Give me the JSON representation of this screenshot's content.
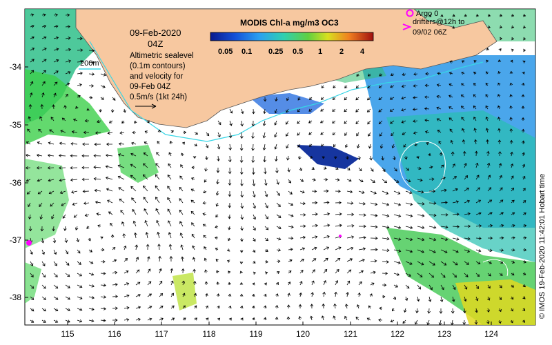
{
  "map": {
    "date": "09-Feb-2020",
    "time": "04Z",
    "depth_contour": "200m",
    "description_lines": [
      "Altimetric sealevel",
      "(0.1m contours)",
      "and velocity for",
      "09-Feb 04Z",
      "0.5m/s (1kt 24h)"
    ],
    "credit": "© IMOS 19-Feb-2020 11:42:01 Hobart time",
    "colors": {
      "land": "#f7c8a0",
      "ocean": "#ffffff",
      "contour": "#36d6e6",
      "argo": "#ff00ff"
    },
    "longitude_ticks": [
      "115",
      "116",
      "117",
      "118",
      "119",
      "120",
      "121",
      "122",
      "123",
      "124"
    ],
    "latitude_ticks": [
      "-34",
      "-35",
      "-36",
      "-37",
      "-38"
    ]
  },
  "colorbar": {
    "title": "MODIS Chl-a mg/m3 OC3",
    "tick_labels": [
      "0.05",
      "0.1",
      "0.25",
      "0.5",
      "1",
      "2",
      "4"
    ]
  },
  "legend": {
    "argo_label": "Argo 0",
    "drifter_line1": "drifters@12h to",
    "drifter_line2": "09/02 06Z"
  }
}
